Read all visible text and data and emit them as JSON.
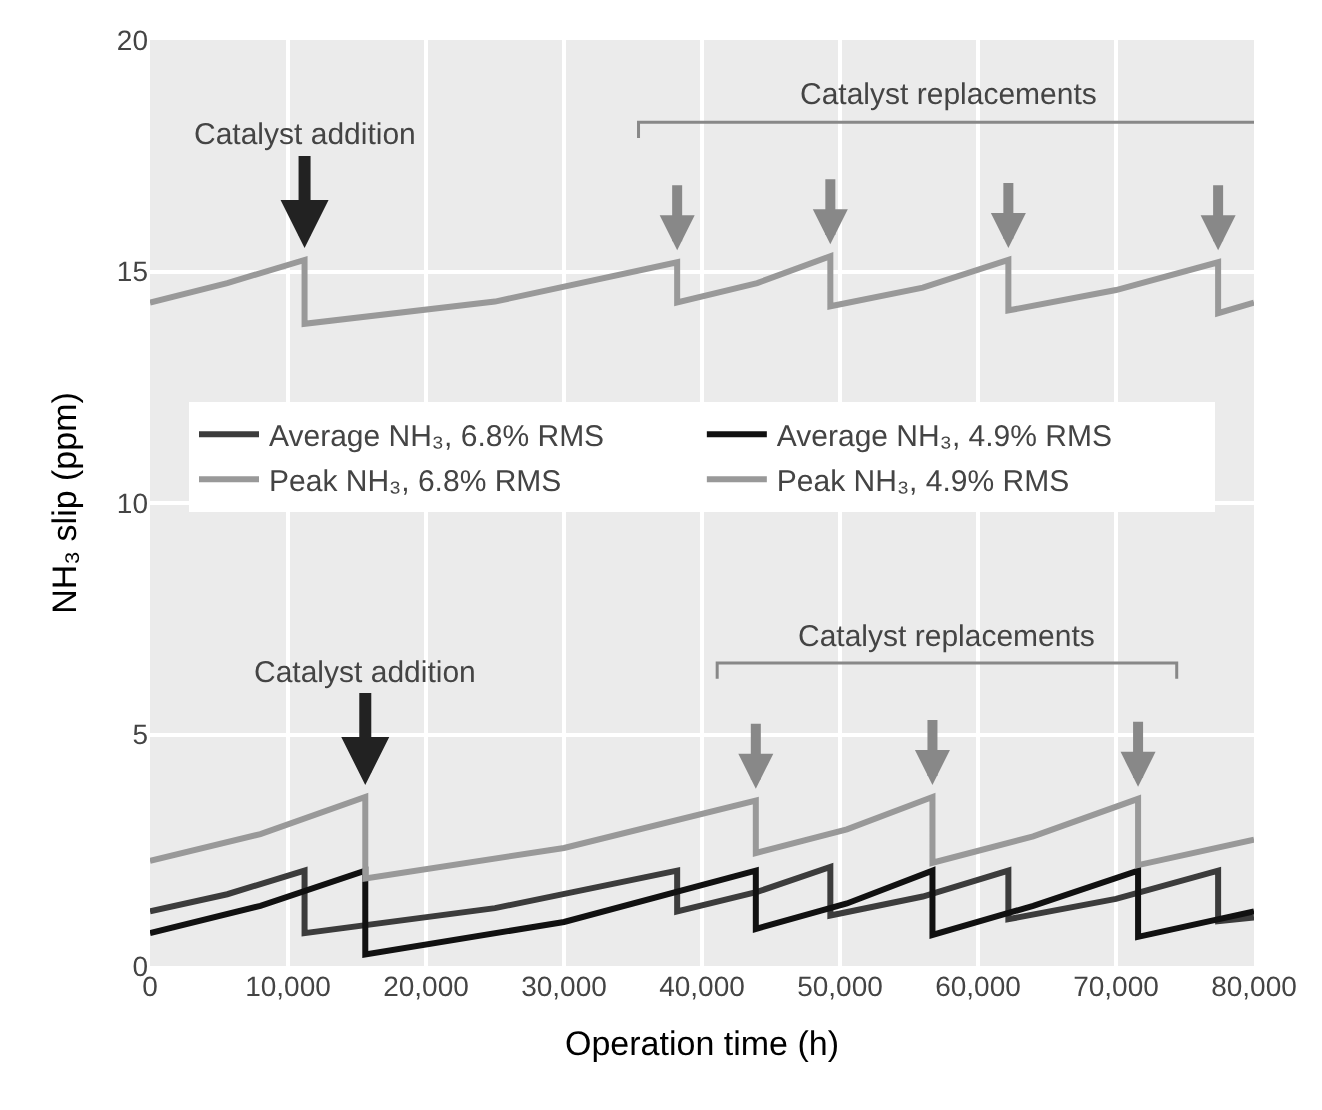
{
  "chart_data": {
    "type": "line",
    "xlabel": "Operation time (h)",
    "ylabel": "NH₃ slip (ppm)",
    "xlim": [
      0,
      80000
    ],
    "ylim": [
      0,
      20
    ],
    "xticks": [
      0,
      {
        "value": 10000,
        "label": "10,000"
      },
      {
        "value": 20000,
        "label": "20,000"
      },
      {
        "value": 30000,
        "label": "30,000"
      },
      {
        "value": 40000,
        "label": "40,000"
      },
      {
        "value": 50000,
        "label": "50,000"
      },
      {
        "value": 60000,
        "label": "60,000"
      },
      {
        "value": 70000,
        "label": "70,000"
      },
      {
        "value": 80000,
        "label": "80,000"
      }
    ],
    "yticks": [
      0,
      5,
      10,
      15,
      20
    ],
    "grid": true,
    "legend": "center",
    "marker": "none",
    "line_style": "solid",
    "series": [
      {
        "name": "Average NH₃, 6.8% RMS",
        "color": "#3c3c3c",
        "x": [
          0,
          5600,
          11200,
          11200,
          25000,
          38200,
          38200,
          44000,
          49300,
          49300,
          56000,
          62200,
          62200,
          70000,
          77400,
          77400,
          80000
        ],
        "values": [
          1.18,
          1.55,
          2.06,
          0.71,
          1.25,
          2.06,
          1.18,
          1.6,
          2.14,
          1.09,
          1.5,
          2.06,
          1.01,
          1.45,
          2.06,
          0.97,
          1.05
        ]
      },
      {
        "name": "Average NH₃, 4.9% RMS",
        "color": "#111111",
        "x": [
          0,
          8000,
          15600,
          15600,
          30000,
          43900,
          43900,
          50500,
          56700,
          56700,
          64000,
          71600,
          71600,
          80000
        ],
        "values": [
          0.71,
          1.3,
          2.06,
          0.25,
          0.95,
          2.06,
          0.8,
          1.35,
          2.06,
          0.67,
          1.3,
          2.06,
          0.63,
          1.18
        ]
      },
      {
        "name": "Peak NH₃, 6.8% RMS",
        "color": "#999999",
        "x": [
          0,
          5600,
          11200,
          11200,
          25000,
          38200,
          38200,
          44000,
          49300,
          49300,
          56000,
          62200,
          62200,
          70000,
          77400,
          77400,
          80000
        ],
        "values": [
          14.33,
          14.75,
          15.25,
          13.87,
          14.35,
          15.2,
          14.33,
          14.75,
          15.33,
          14.25,
          14.65,
          15.25,
          14.16,
          14.6,
          15.2,
          14.1,
          14.33
        ]
      },
      {
        "name": "Peak NH₃, 4.9% RMS",
        "color": "#999999",
        "x": [
          0,
          8000,
          15600,
          15600,
          30000,
          43900,
          43900,
          50500,
          56700,
          56700,
          64000,
          71600,
          71600,
          80000
        ],
        "values": [
          2.27,
          2.85,
          3.65,
          1.89,
          2.55,
          3.57,
          2.44,
          2.95,
          3.65,
          2.23,
          2.8,
          3.61,
          2.18,
          2.73
        ]
      }
    ],
    "annotations": [
      {
        "text": "Catalyst addition",
        "x": 11200,
        "y": 15.25
      },
      "Catalyst replacements",
      {
        "text": "Catalyst addition",
        "x": 15600,
        "y": 3.65
      },
      "Catalyst replacements"
    ]
  }
}
